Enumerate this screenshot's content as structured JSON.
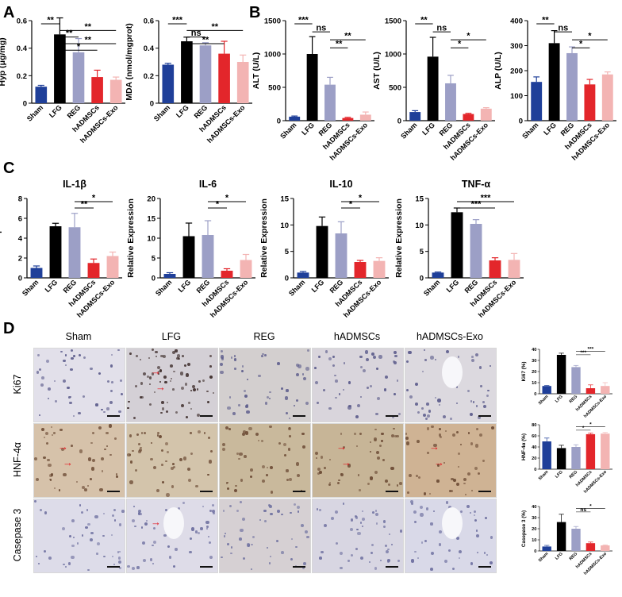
{
  "figure": {
    "panel_labels": [
      "A",
      "B",
      "C",
      "D"
    ]
  },
  "colors": {
    "Sham": "#1f3f99",
    "LFG": "#000000",
    "REG": "#9c9fc6",
    "hADMSCs": "#e3262b",
    "hADMSCs-Exo": "#f3b4b3"
  },
  "chart_data": [
    {
      "id": "hyp",
      "type": "bar",
      "categories": [
        "Sham",
        "LFG",
        "REG",
        "hADMSCs",
        "hADMSCs-Exo"
      ],
      "values": [
        0.12,
        0.5,
        0.37,
        0.19,
        0.17
      ],
      "errors": [
        0.01,
        0.12,
        0.1,
        0.05,
        0.02
      ],
      "title": "",
      "xlabel": "",
      "ylabel": "Hyp (μg/mg)",
      "ylim": [
        0,
        0.6
      ],
      "yticks": [
        0.0,
        0.2,
        0.4,
        0.6
      ],
      "significance": [
        {
          "from": 0,
          "to": 1,
          "label": "**"
        },
        {
          "from": 1,
          "to": 4,
          "label": "**"
        },
        {
          "from": 1,
          "to": 2,
          "label": "**"
        },
        {
          "from": 1,
          "to": 4,
          "label": "**"
        },
        {
          "from": 1,
          "to": 3,
          "label": "*"
        }
      ]
    },
    {
      "id": "mda",
      "type": "bar",
      "categories": [
        "Sham",
        "LFG",
        "REG",
        "hADMSCs",
        "hADMSCs-Exo"
      ],
      "values": [
        0.28,
        0.45,
        0.42,
        0.36,
        0.3
      ],
      "errors": [
        0.01,
        0.03,
        0.02,
        0.09,
        0.05
      ],
      "title": "",
      "xlabel": "",
      "ylabel": "MDA (nmol/mgprot)",
      "ylim": [
        0,
        0.6
      ],
      "yticks": [
        0.0,
        0.2,
        0.4,
        0.6
      ],
      "significance": [
        {
          "from": 0,
          "to": 1,
          "label": "***"
        },
        {
          "from": 1,
          "to": 4,
          "label": "**"
        },
        {
          "from": 1,
          "to": 2,
          "label": "ns"
        },
        {
          "from": 1,
          "to": 3,
          "label": "**"
        }
      ]
    },
    {
      "id": "alt",
      "type": "bar",
      "categories": [
        "Sham",
        "LFG",
        "REG",
        "hADMSCs",
        "hADMSCs-Exo"
      ],
      "values": [
        60,
        1000,
        540,
        40,
        90
      ],
      "errors": [
        10,
        260,
        110,
        10,
        40
      ],
      "title": "",
      "xlabel": "",
      "ylabel": "ALT (U/L)",
      "ylim": [
        0,
        1500
      ],
      "yticks": [
        0,
        500,
        1000,
        1500
      ],
      "significance": [
        {
          "from": 0,
          "to": 1,
          "label": "***"
        },
        {
          "from": 1,
          "to": 2,
          "label": "ns"
        },
        {
          "from": 2,
          "to": 4,
          "label": "**"
        },
        {
          "from": 2,
          "to": 3,
          "label": "**"
        }
      ]
    },
    {
      "id": "ast",
      "type": "bar",
      "categories": [
        "Sham",
        "LFG",
        "REG",
        "hADMSCs",
        "hADMSCs-Exo"
      ],
      "values": [
        130,
        960,
        560,
        100,
        180
      ],
      "errors": [
        20,
        290,
        120,
        10,
        15
      ],
      "title": "",
      "xlabel": "",
      "ylabel": "AST (U/L)",
      "ylim": [
        0,
        1500
      ],
      "yticks": [
        0,
        500,
        1000,
        1500
      ],
      "significance": [
        {
          "from": 0,
          "to": 1,
          "label": "**"
        },
        {
          "from": 1,
          "to": 2,
          "label": "ns"
        },
        {
          "from": 2,
          "to": 4,
          "label": "*"
        },
        {
          "from": 2,
          "to": 3,
          "label": "*"
        }
      ]
    },
    {
      "id": "alp",
      "type": "bar",
      "categories": [
        "Sham",
        "LFG",
        "REG",
        "hADMSCs",
        "hADMSCs-Exo"
      ],
      "values": [
        155,
        310,
        270,
        145,
        185
      ],
      "errors": [
        20,
        50,
        25,
        20,
        10
      ],
      "title": "",
      "xlabel": "",
      "ylabel": "ALP (U/L)",
      "ylim": [
        0,
        400
      ],
      "yticks": [
        0,
        100,
        200,
        300,
        400
      ],
      "significance": [
        {
          "from": 0,
          "to": 1,
          "label": "**"
        },
        {
          "from": 1,
          "to": 2,
          "label": "ns"
        },
        {
          "from": 2,
          "to": 4,
          "label": "*"
        },
        {
          "from": 2,
          "to": 3,
          "label": "*"
        }
      ]
    },
    {
      "id": "il1b",
      "type": "bar",
      "categories": [
        "Sham",
        "LFG",
        "REG",
        "hADMSCs",
        "hADMSCs-Exo"
      ],
      "values": [
        1.0,
        5.2,
        5.1,
        1.5,
        2.2
      ],
      "errors": [
        0.2,
        0.3,
        1.4,
        0.4,
        0.4
      ],
      "title": "IL-1β",
      "xlabel": "",
      "ylabel": "Relative Expression",
      "ylim": [
        0,
        8
      ],
      "yticks": [
        0,
        2,
        4,
        6,
        8
      ],
      "significance": [
        {
          "from": 2,
          "to": 4,
          "label": "*"
        },
        {
          "from": 2,
          "to": 3,
          "label": "**"
        }
      ]
    },
    {
      "id": "il6",
      "type": "bar",
      "categories": [
        "Sham",
        "LFG",
        "REG",
        "hADMSCs",
        "hADMSCs-Exo"
      ],
      "values": [
        1.0,
        10.5,
        10.8,
        1.8,
        4.5
      ],
      "errors": [
        0.3,
        3.3,
        3.6,
        0.5,
        1.4
      ],
      "title": "IL-6",
      "xlabel": "",
      "ylabel": "Relative Expression",
      "ylim": [
        0,
        20
      ],
      "yticks": [
        0,
        5,
        10,
        15,
        20
      ],
      "significance": [
        {
          "from": 2,
          "to": 4,
          "label": "*"
        },
        {
          "from": 2,
          "to": 3,
          "label": "*"
        }
      ]
    },
    {
      "id": "il10",
      "type": "bar",
      "categories": [
        "Sham",
        "LFG",
        "REG",
        "hADMSCs",
        "hADMSCs-Exo"
      ],
      "values": [
        1.0,
        9.8,
        8.4,
        3.0,
        3.2
      ],
      "errors": [
        0.2,
        1.7,
        2.2,
        0.3,
        0.6
      ],
      "title": "IL-10",
      "xlabel": "",
      "ylabel": "Relative Expression",
      "ylim": [
        0,
        15
      ],
      "yticks": [
        0,
        5,
        10,
        15
      ],
      "significance": [
        {
          "from": 2,
          "to": 4,
          "label": "*"
        },
        {
          "from": 2,
          "to": 3,
          "label": "*"
        }
      ]
    },
    {
      "id": "tnfa",
      "type": "bar",
      "categories": [
        "Sham",
        "LFG",
        "REG",
        "hADMSCs",
        "hADMSCs-Exo"
      ],
      "values": [
        1.0,
        12.4,
        10.2,
        3.3,
        3.4
      ],
      "errors": [
        0.1,
        0.8,
        0.8,
        0.5,
        1.2
      ],
      "title": "TNF-α",
      "xlabel": "",
      "ylabel": "Relative Expression",
      "ylim": [
        0,
        15
      ],
      "yticks": [
        0,
        5,
        10,
        15
      ],
      "significance": [
        {
          "from": 1,
          "to": 4,
          "label": "***"
        },
        {
          "from": 1,
          "to": 3,
          "label": "***"
        }
      ]
    },
    {
      "id": "ki67",
      "type": "bar",
      "categories": [
        "Sham",
        "LFG",
        "REG",
        "hADMSCs",
        "hADMSCs-Exo"
      ],
      "values": [
        7,
        35,
        24,
        5,
        7
      ],
      "errors": [
        0.5,
        1.5,
        1.5,
        3,
        3
      ],
      "title": "",
      "xlabel": "",
      "ylabel": "Ki67 (%)",
      "ylim": [
        0,
        40
      ],
      "yticks": [
        0,
        10,
        20,
        30,
        40
      ],
      "significance": [
        {
          "from": 2,
          "to": 4,
          "label": "***"
        },
        {
          "from": 2,
          "to": 3,
          "label": "***"
        }
      ]
    },
    {
      "id": "hnf4a",
      "type": "bar",
      "categories": [
        "Sham",
        "LFG",
        "REG",
        "hADMSCs",
        "hADMSCs-Exo"
      ],
      "values": [
        50,
        38,
        40,
        63,
        64
      ],
      "errors": [
        6,
        5,
        4,
        2,
        2
      ],
      "title": "",
      "xlabel": "",
      "ylabel": "HNF-4α (%)",
      "ylim": [
        0,
        80
      ],
      "yticks": [
        0,
        20,
        40,
        60,
        80
      ],
      "significance": [
        {
          "from": 2,
          "to": 4,
          "label": "*"
        },
        {
          "from": 2,
          "to": 3,
          "label": "*"
        }
      ]
    },
    {
      "id": "casp3",
      "type": "bar",
      "categories": [
        "Sham",
        "LFG",
        "REG",
        "hADMSCs",
        "hADMSCs-Exo"
      ],
      "values": [
        4,
        26,
        20,
        7,
        5
      ],
      "errors": [
        1,
        7,
        2,
        1,
        0.5
      ],
      "title": "",
      "xlabel": "",
      "ylabel": "Casepase 3 (%)",
      "ylim": [
        0,
        40
      ],
      "yticks": [
        0,
        10,
        20,
        30,
        40
      ],
      "significance": [
        {
          "from": 2,
          "to": 4,
          "label": "*"
        },
        {
          "from": 2,
          "to": 3,
          "label": "ns"
        }
      ]
    }
  ],
  "micrographs": {
    "columns": [
      "Sham",
      "LFG",
      "REG",
      "hADMSCs",
      "hADMSCs-Exo"
    ],
    "rows": [
      "Ki67",
      "HNF-4α",
      "Casepase 3"
    ],
    "stain_colors": [
      [
        "#e2e0ea",
        "#d4d0d6",
        "#d3cfcf",
        "#d9d5dc",
        "#dcd9df"
      ],
      [
        "#d6c2aa",
        "#d3c4ab",
        "#c9b99c",
        "#c7b597",
        "#cfb394"
      ],
      [
        "#dddce9",
        "#dedce8",
        "#d6d0d3",
        "#d8d6e2",
        "#d9d9e8"
      ]
    ]
  }
}
